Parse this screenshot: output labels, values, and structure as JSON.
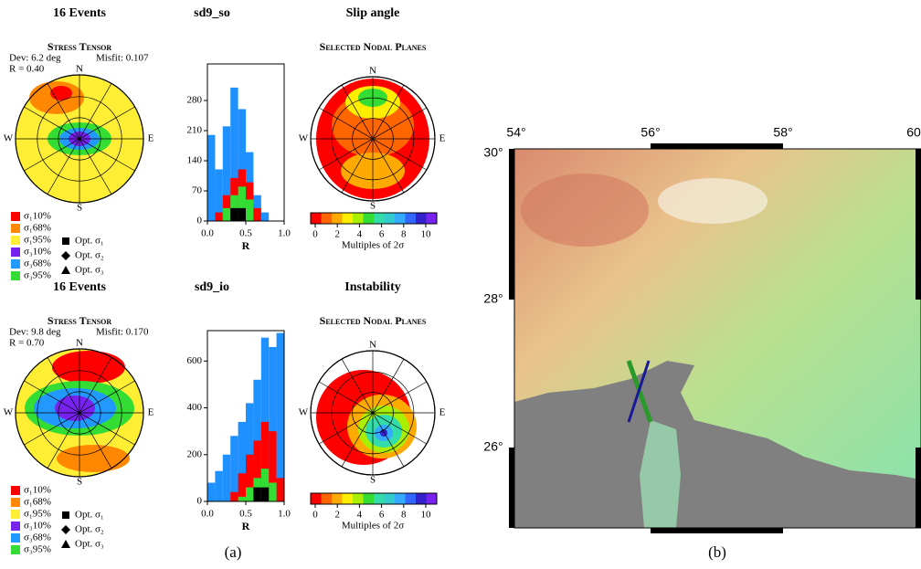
{
  "panels": [
    {
      "events": "16 Events",
      "run": "sd9_so",
      "measure": "Slip angle",
      "stress": {
        "title": "Stress Tensor",
        "dev": "Dev: 6.2 deg",
        "north": "N",
        "misfit": "Misfit: 0.107",
        "r": "R = 0.40",
        "west": "W",
        "east": "E",
        "south": "S"
      },
      "histogram": {
        "type": "bar",
        "xlabel": "R",
        "bins": [
          0,
          0.1,
          0.2,
          0.3,
          0.4,
          0.5,
          0.6,
          0.7,
          0.8
        ],
        "series": [
          {
            "color": "#1e90ff",
            "values": [
              200,
              120,
              220,
              310,
              260,
              160,
              60,
              20
            ]
          },
          {
            "color": "#ff0000",
            "values": [
              0,
              20,
              60,
              100,
              120,
              90,
              30,
              0
            ]
          },
          {
            "color": "#33dd33",
            "values": [
              0,
              0,
              30,
              60,
              80,
              50,
              0,
              0
            ]
          },
          {
            "color": "#000000",
            "values": [
              0,
              0,
              0,
              30,
              30,
              0,
              0,
              0
            ]
          }
        ],
        "xlim": [
          0,
          1
        ],
        "xticks": [
          {
            "value": 0,
            "label": "0.0"
          },
          {
            "value": 0.5,
            "label": "0.5"
          },
          {
            "value": 1,
            "label": "1.0"
          }
        ],
        "ylim": [
          0,
          365
        ],
        "yticks": [
          0,
          70,
          140,
          210,
          280
        ]
      },
      "nodal": {
        "title": "Selected Nodal Planes",
        "north": "N",
        "west": "W",
        "east": "E",
        "south": "S"
      }
    },
    {
      "events": "16 Events",
      "run": "sd9_io",
      "measure": "Instability",
      "stress": {
        "title": "Stress Tensor",
        "dev": "Dev: 9.8 deg",
        "north": "N",
        "misfit": "Misfit: 0.170",
        "r": "R = 0.70",
        "west": "W",
        "east": "E",
        "south": "S"
      },
      "histogram": {
        "type": "bar",
        "xlabel": "R",
        "bins": [
          0,
          0.1,
          0.2,
          0.3,
          0.4,
          0.5,
          0.6,
          0.7,
          0.8,
          0.9,
          1.0
        ],
        "series": [
          {
            "color": "#1e90ff",
            "values": [
              80,
              130,
              200,
              280,
              340,
              420,
              520,
              700,
              660,
              720
            ]
          },
          {
            "color": "#ff0000",
            "values": [
              0,
              0,
              0,
              40,
              120,
              200,
              260,
              340,
              300,
              100
            ]
          },
          {
            "color": "#33dd33",
            "values": [
              0,
              0,
              0,
              0,
              20,
              60,
              100,
              140,
              80,
              0
            ]
          },
          {
            "color": "#000000",
            "values": [
              0,
              0,
              0,
              0,
              0,
              0,
              60,
              60,
              0,
              0
            ]
          }
        ],
        "xlim": [
          0,
          1
        ],
        "xticks": [
          {
            "value": 0,
            "label": "0.0"
          },
          {
            "value": 0.5,
            "label": "0.5"
          },
          {
            "value": 1,
            "label": "1.0"
          }
        ],
        "ylim": [
          0,
          730
        ],
        "yticks": [
          0,
          200,
          400,
          600
        ]
      },
      "nodal": {
        "title": "Selected Nodal Planes",
        "north": "N",
        "west": "W",
        "east": "E",
        "south": "S"
      }
    }
  ],
  "legend": {
    "shades": [
      {
        "label": "σ₁10%",
        "color": "#ff0000"
      },
      {
        "label": "σ₁68%",
        "color": "#ff8800"
      },
      {
        "label": "σ₁95%",
        "color": "#ffee33"
      },
      {
        "label": "σ₃10%",
        "color": "#7722ee"
      },
      {
        "label": "σ₃68%",
        "color": "#2299ff"
      },
      {
        "label": "σ₃95%",
        "color": "#33dd33"
      }
    ],
    "optima": [
      "Opt. σ₁",
      "Opt. σ₂",
      "Opt. σ₃"
    ]
  },
  "colorbar": {
    "ticks": [
      0,
      2,
      4,
      6,
      8,
      10
    ],
    "label": "Multiples of 2σ",
    "colors": [
      "#ff0000",
      "#ff6600",
      "#ffaa00",
      "#ffee00",
      "#aaee00",
      "#33dd33",
      "#33ddaa",
      "#33cccc",
      "#33aaff",
      "#3366ff",
      "#3322cc",
      "#7722ee"
    ]
  },
  "map": {
    "lon": [
      "54°",
      "56°",
      "58°",
      "60"
    ],
    "lat": [
      "30°",
      "28°",
      "26°"
    ]
  },
  "captions": {
    "a": "(a)",
    "b": "(b)"
  }
}
